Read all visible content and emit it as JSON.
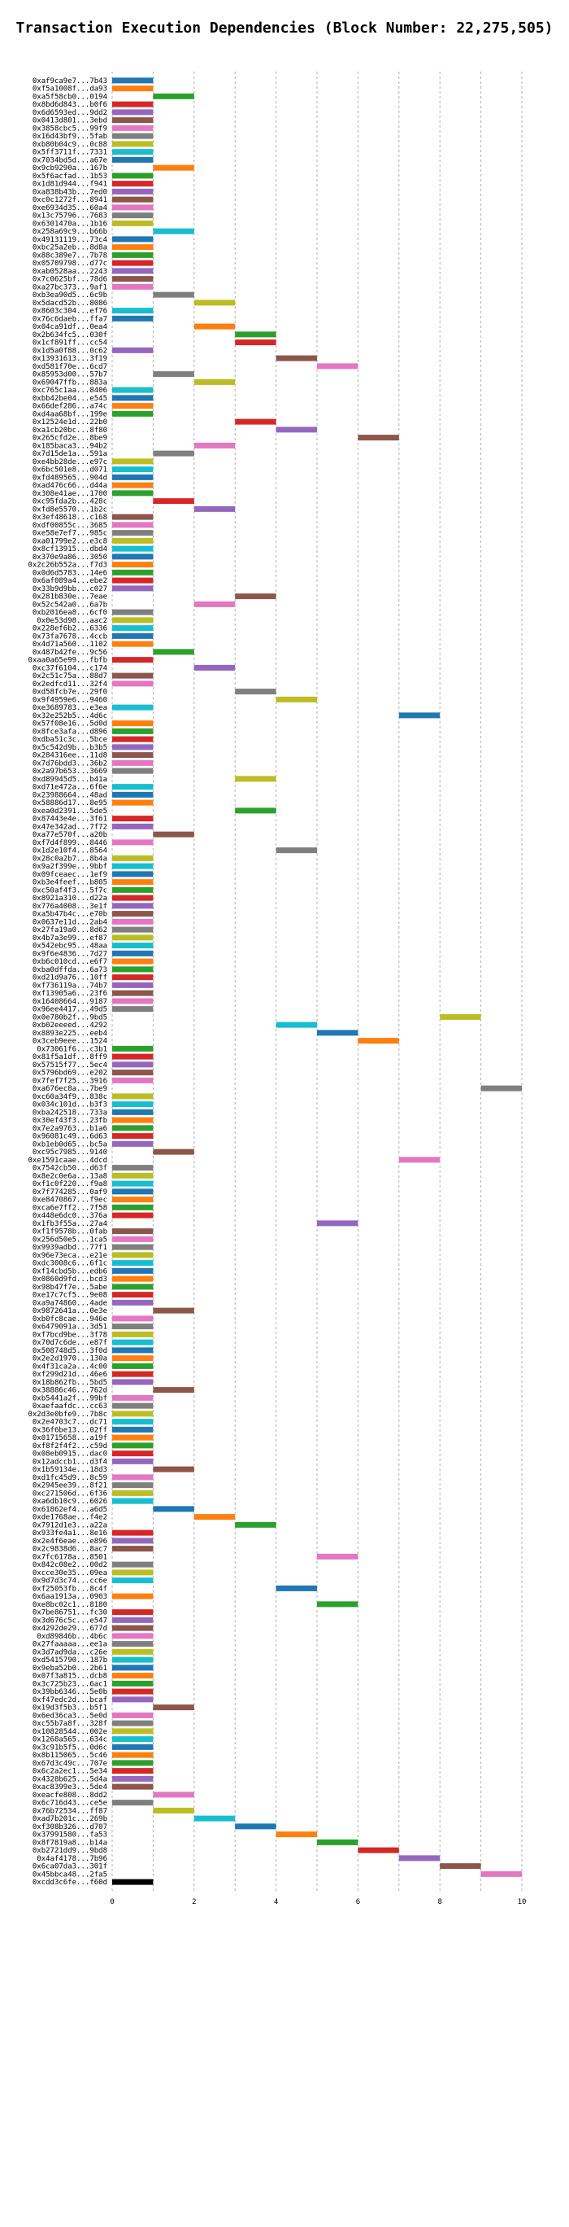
{
  "chart_data": {
    "type": "bar",
    "orientation": "horizontal",
    "title": "Transaction Execution Dependencies (Block Number: 22,275,505)",
    "xlabel": "",
    "ylabel": "",
    "xlim": [
      0,
      10
    ],
    "xticks": [
      0,
      2,
      4,
      6,
      8,
      10
    ],
    "grid": true,
    "bar_width": 1,
    "palette": [
      "#1f77b4",
      "#ff7f0e",
      "#2ca02c",
      "#d62728",
      "#9467bd",
      "#8c564b",
      "#e377c2",
      "#7f7f7f",
      "#bcbd22",
      "#17becf"
    ],
    "transactions": [
      "0xaf9ca9e7...7b43",
      "0xf5a1008f...da93",
      "0xa5f58cb0...0194",
      "0x8bd6d843...b0f6",
      "0x6d6593ed...9dd2",
      "0x0413d801...3ebd",
      "0x3858cbc5...99f9",
      "0x16d43bf9...5fab",
      "0xb80b04c9...0c88",
      "0x5ff3711f...7331",
      "0x7034bd5d...a67e",
      "0x9cb9290a...167b",
      "0x5f6acfad...1b53",
      "0x1d81d944...f941",
      "0xa838b43b...7ed0",
      "0xc0c1272f...8941",
      "0xe6934d35...60a4",
      "0x13c75796...7683",
      "0x6301470a...1b16",
      "0x258a69c9...b66b",
      "0x49131119...73c4",
      "0xbc25a2eb...8d8a",
      "0x88c389e7...7b78",
      "0x05709798...d77c",
      "0xab0528aa...2243",
      "0x7c0625bf...78d6",
      "0xa27bc373...9af1",
      "0xb3ea90d5...6c9b",
      "0x5dacd52b...8086",
      "0x8603c304...ef76",
      "0x76c6daeb...ffa7",
      "0x04ca91df...0ea4",
      "0x2b634fc5...030f",
      "0x1cf891ff...cc54",
      "0x1d5a0f88...0c62",
      "0x13931613...3f19",
      "0xd581f70e...6cd7",
      "0x85953d00...57b7",
      "0x69047ffb...883a",
      "0xc765c1aa...8406",
      "0xbb42be04...e545",
      "0x66def286...a74c",
      "0xd4aa68bf...199e",
      "0x12524e1d...22b0",
      "0xa1cb20bc...8f80",
      "0x265cfd2e...8be9",
      "0x185baca3...94b2",
      "0x7d15de1a...591a",
      "0xe4bb28de...e97c",
      "0x6bc501e8...d071",
      "0xfd489565...904d",
      "0xad476c66...d44a",
      "0x308e41ae...1700",
      "0xc95fda2b...428c",
      "0xfd8e5570...1b2c",
      "0x3ef48618...c168",
      "0xdf00855c...3685",
      "0xe58e7ef7...985c",
      "0xa01799e2...e3c8",
      "0x8cf13915...dbd4",
      "0x370e9a86...3050",
      "0x2c26b552a...f7d3",
      "0x0d6d5783...14e6",
      "0x6af089a4...ebe2",
      "0x33b9d9bb...c027",
      "0x281b830e...7eae",
      "0x52c542a0...6a7b",
      "0xb2016ea8...6cf0",
      "0x0e53d98...aac2",
      "0x228ef6b2...6336",
      "0x73fa7678...4ccb",
      "0x4d71a560...1102",
      "0x487b42fe...9c56",
      "0xaa0a65e99...fbfb",
      "0xc37f6104...c174",
      "0x2c51c75a...88d7",
      "0x2edfcd11...32f4",
      "0xd58fcb7e...29f0",
      "0x9f4959e6...9460",
      "0xe3689783...e3ea",
      "0x32e252b5...4d6c",
      "0x57f08e16...5d0d",
      "0x8fce3afa...d896",
      "0xdba51c3c...5bce",
      "0x5c542d9b...b3b5",
      "0x284316ee...11d8",
      "0x7d76bdd3...36b2",
      "0x2a97b653...3669",
      "0xd89945d5...b41a",
      "0xd71e472a...6f6e",
      "0x23988664...48ad",
      "0x58886d17...8e95",
      "0xea0d2391...5de5",
      "0x87443e4e...3f61",
      "0x47e342ad...7f72",
      "0xa77e570f...a20b",
      "0xf7d4f899...8446",
      "0x1d2e10f4...8564",
      "0x28c0a2b7...8b4a",
      "0x9a2f399e...9bbf",
      "0x09fceaec...1ef9",
      "0xb3e4feef...b805",
      "0xc50af4f3...5f7c",
      "0x8921a310...d22a",
      "0x776a4008...3e1f",
      "0xa5b47b4c...e70b",
      "0x0637e11d...2ab4",
      "0x27fa19a0...8d62",
      "0x4b7a3e99...ef87",
      "0x542ebc95...48aa",
      "0x9f6e4836...7d27",
      "0xb6c010cd...e6f7",
      "0xba0dffda...6a73",
      "0xd21d9a76...10ff",
      "0xf736119a...74b7",
      "0xf13905a6...23f6",
      "0x16408664...9187",
      "0x96ee4417...49d5",
      "0x0e780b2f...9bd5",
      "0xb02eeeed...4292",
      "0x8893e225...eeb4",
      "0x3ceb9eee...1524",
      "0x73061f6...c3b1",
      "0x81f5a1df...8ff9",
      "0x57515f77...5ec4",
      "0x5796bd69...e202",
      "0x7fef7f25...3916",
      "0xa676ec8a...7be9",
      "0xc60a34f9...838c",
      "0x034c101d...b3f3",
      "0xba242518...733a",
      "0x30ef43f3...23fb",
      "0x7e2a9763...b1a6",
      "0x96081c49...6d63",
      "0xb1eb0d65...bc5a",
      "0xc95c7985...9140",
      "0xe1591caae...4dcd",
      "0x7542cb50...d63f",
      "0x8e2c0e6a...13a8",
      "0xf1c0f220...f9a8",
      "0x7f774285...0af9",
      "0xe8470867...f9ec",
      "0xca6e7ff2...7f58",
      "0x448e6dc0...376a",
      "0x1fb3f55a...27a4",
      "0xf1f9578b...0fab",
      "0x256d50e5...1ca5",
      "0x9939adbd...77f1",
      "0x96e73eca...e21e",
      "0xdc3008c6...6f1c",
      "0xf14cbd5b...edb6",
      "0x0860d9fd...bcd3",
      "0x98b47f7e...5abe",
      "0xe17c7cf5...9e08",
      "0xa9a74860...4ade",
      "0x9872641a...0e3e",
      "0xb0fc8cae...946e",
      "0x6479091a...3d51",
      "0xf7bcd9be...3f78",
      "0x70d7c6de...e87f",
      "0x508748d5...3f0d",
      "0x2e2d1970...130a",
      "0x4f31ca2a...4c00",
      "0xf299d21d...46e6",
      "0x18b862fb...5bd5",
      "0x38886c46...762d",
      "0xb5441a2f...99bf",
      "0xaefaafdc...cc63",
      "0x2d3e0bfe9...7b8c",
      "0x2e4703c7...dc71",
      "0x36f6be13...02ff",
      "0x01715658...a19f",
      "0xf8f2f4f2...c59d",
      "0x08eb0915...dac0",
      "0x12adccb1...d3f4",
      "0x1b59134e...18d3",
      "0xd1fc45d9...8c59",
      "0x2945ee39...8f21",
      "0xc271506d...6f36",
      "0xa6db10c9...6026",
      "0x61862ef4...a6d5",
      "0xde1768ae...f4e2",
      "0x7912d1e3...a22a",
      "0x933fe4a1...8e16",
      "0x2e4f6eae...e896",
      "0x2c9838d6...8ac7",
      "0x7fc6178a...8501",
      "0x842c08e2...00d2",
      "0xcce30e35...09ea",
      "0x9d7d3c74...cc6e",
      "0xf25053fb...8c4f",
      "0x6aa1913a...0903",
      "0xe8bc02c1...8180",
      "0x7be86751...fc30",
      "0x3d676c5c...e547",
      "0x4292de29...677d",
      "0xd89846b...4b6c",
      "0x27faaaaa...ee1a",
      "0x3d7ad9da...c26e",
      "0xd5415790...187b",
      "0x9eba52b0...2b61",
      "0x07f3a815...dcb8",
      "0x3c725b23...6ac1",
      "0x39bb6346...5e0b",
      "0xf47edc2d...bcaf",
      "0x19d3f5b3...b5f1",
      "0x6ed36ca3...5e0d",
      "0xc55b7a8f...328f",
      "0x10828544...002e",
      "0x1268a565...634c",
      "0x3c91b5f5...0d6c",
      "0x8b115065...5c46",
      "0x67d3c49c...707e",
      "0x6c2a2ec1...5e34",
      "0x4328b625...5d4a",
      "0xac8399e3...5de4",
      "0xeacfe808...8dd2",
      "0x6c716d43...ce5e",
      "0x76b72534...ff87",
      "0xad7b201c...269b",
      "0xf308b326...d707",
      "0x37991580...fa53",
      "0x8f7819a8...b14a",
      "0xb2721dd9...9bd8",
      "0x4af4178...7b96",
      "0x6ca07da3...301f",
      "0x45bbca48...2fa5",
      "0xcdd3c6fe...f60d"
    ],
    "start_times": [
      0,
      0,
      1,
      0,
      0,
      0,
      0,
      0,
      0,
      0,
      0,
      1,
      0,
      0,
      0,
      0,
      0,
      0,
      0,
      1,
      0,
      0,
      0,
      0,
      0,
      0,
      0,
      1,
      2,
      0,
      0,
      2,
      3,
      3,
      0,
      4,
      5,
      1,
      2,
      0,
      0,
      0,
      0,
      3,
      4,
      6,
      2,
      1,
      0,
      0,
      0,
      0,
      0,
      1,
      2,
      0,
      0,
      0,
      0,
      0,
      0,
      0,
      0,
      0,
      0,
      3,
      2,
      0,
      0,
      0,
      0,
      0,
      1,
      0,
      2,
      0,
      0,
      3,
      4,
      0,
      7,
      0,
      0,
      0,
      0,
      0,
      0,
      0,
      3,
      0,
      0,
      0,
      3,
      0,
      0,
      1,
      0,
      4,
      0,
      0,
      0,
      0,
      0,
      0,
      0,
      0,
      0,
      0,
      0,
      0,
      0,
      0,
      0,
      0,
      0,
      0,
      0,
      0,
      8,
      4,
      5,
      6,
      0,
      0,
      0,
      0,
      0,
      9,
      0,
      0,
      0,
      0,
      0,
      0,
      0,
      1,
      7,
      0,
      0,
      0,
      0,
      0,
      0,
      0,
      5,
      0,
      0,
      0,
      0,
      0,
      0,
      0,
      0,
      0,
      0,
      1,
      0,
      0,
      0,
      0,
      0,
      0,
      0,
      0,
      0,
      1,
      0,
      0,
      0,
      0,
      0,
      0,
      0,
      0,
      0,
      1,
      0,
      0,
      0,
      0,
      1,
      2,
      3,
      0,
      0,
      0,
      5,
      0,
      0,
      0,
      4,
      0,
      5,
      0,
      0,
      0,
      0,
      0,
      0,
      0,
      0,
      0,
      0,
      0,
      0,
      1,
      0,
      0,
      0,
      0,
      0,
      0,
      0,
      0,
      0,
      0,
      1,
      0,
      1,
      2,
      3,
      4,
      5,
      6,
      7,
      8,
      9
    ],
    "color_indices": [
      0,
      1,
      2,
      3,
      4,
      5,
      6,
      7,
      8,
      9,
      0,
      1,
      2,
      3,
      4,
      5,
      6,
      7,
      8,
      9,
      0,
      1,
      2,
      3,
      4,
      5,
      6,
      7,
      8,
      9,
      0,
      1,
      2,
      3,
      4,
      5,
      6,
      7,
      8,
      9,
      0,
      1,
      2,
      3,
      4,
      5,
      6,
      7,
      8,
      9,
      0,
      1,
      2,
      3,
      4,
      5,
      6,
      7,
      8,
      9,
      0,
      1,
      2,
      3,
      4,
      5,
      6,
      7,
      8,
      9,
      0,
      1,
      2,
      3,
      4,
      5,
      6,
      7,
      8,
      9,
      0,
      1,
      2,
      3,
      4,
      5,
      6,
      7,
      8,
      9,
      0,
      1,
      2,
      3,
      4,
      5,
      6,
      7,
      8,
      9,
      0,
      1,
      2,
      3,
      4,
      5,
      6,
      7,
      8,
      9,
      0,
      1,
      2,
      3,
      4,
      5,
      6,
      7,
      8,
      9,
      0,
      1,
      2,
      3,
      4,
      5,
      6,
      7,
      8,
      9,
      0,
      1,
      2,
      3,
      4,
      5,
      6,
      7,
      8,
      9,
      0,
      1,
      2,
      3,
      4,
      5,
      6,
      7,
      8,
      9,
      0,
      1,
      2,
      3,
      4,
      5,
      6,
      7,
      8,
      9,
      0,
      1,
      2,
      3,
      4,
      5,
      6,
      7,
      8,
      9,
      0,
      1,
      2,
      3,
      4,
      5,
      6,
      7,
      8,
      9,
      0,
      1,
      2,
      3,
      4,
      5,
      6,
      7,
      8,
      9,
      0,
      1,
      2,
      3,
      4,
      5,
      6,
      7,
      8,
      9,
      0,
      1,
      2,
      3,
      4,
      5,
      6,
      7,
      8,
      9,
      0,
      1,
      2,
      3,
      4,
      5,
      6,
      7,
      8,
      9,
      0,
      1,
      2,
      3,
      4,
      5,
      6
    ]
  }
}
